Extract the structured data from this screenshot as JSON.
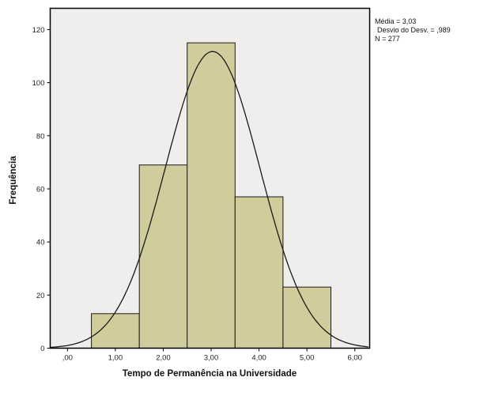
{
  "chart_data": {
    "type": "bar",
    "subtype": "histogram-with-normal-curve",
    "title": "",
    "xlabel": "Tempo de Permanência na Universidade",
    "ylabel": "Frequência",
    "bin_centers": [
      1,
      2,
      3,
      4,
      5
    ],
    "bin_width": 1,
    "values": [
      13,
      69,
      115,
      57,
      23
    ],
    "x_ticks": {
      "values": [
        0,
        1,
        2,
        3,
        4,
        5,
        6
      ],
      "labels": [
        ",00",
        "1,00",
        "2,00",
        "3,00",
        "4,00",
        "5,00",
        "6,00"
      ]
    },
    "y_ticks": [
      0,
      20,
      40,
      60,
      80,
      100,
      120
    ],
    "xlim": [
      -0.36,
      6.31
    ],
    "ylim": [
      0,
      128
    ],
    "grid": false,
    "legend_position": "top-right-outside",
    "normal_curve": {
      "mean": 3.03,
      "sd": 0.989,
      "n": 277
    },
    "colors": {
      "bar_fill": "#D1CC9B",
      "bar_stroke": "#1a1a1a",
      "plot_bg": "#EFEEEC",
      "frame": "#000000",
      "curve": "#1a1a1a",
      "tick_text": "#222222"
    },
    "legend": {
      "mean": "Média = 3,03",
      "sd": "Desvio do Desv. = ,989",
      "n": "N = 277"
    }
  }
}
